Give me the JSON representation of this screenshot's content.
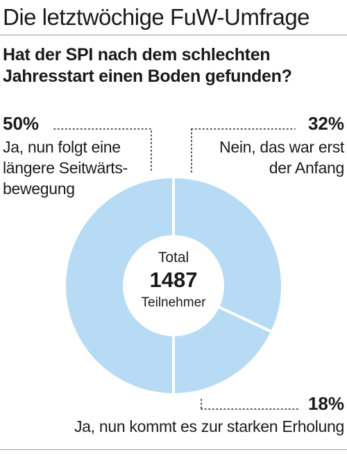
{
  "header": {
    "title": "Die letztwöchige FuW-Umfrage"
  },
  "question": "Hat der SPI nach dem schlechten Jahresstart einen Boden gefunden?",
  "center": {
    "total_label": "Total",
    "count": "1487",
    "unit": "Teilnehmer"
  },
  "colors": {
    "slice": "#b7dbf4",
    "separator": "#ffffff",
    "leader": "#1a1a1a",
    "rule": "#9a9a9a"
  },
  "chart_data": {
    "type": "pie",
    "title": "Hat der SPI nach dem schlechten Jahresstart einen Boden gefunden?",
    "total": 1487,
    "slices": [
      {
        "pct_label": "32%",
        "value": 32,
        "lines": [
          "Nein, das war erst",
          "der Anfang"
        ]
      },
      {
        "pct_label": "18%",
        "value": 18,
        "lines": [
          "Ja, nun kommt es zur starken Erholung"
        ]
      },
      {
        "pct_label": "50%",
        "value": 50,
        "lines": [
          "Ja, nun folgt eine",
          "längere Seitwärts-",
          "bewegung"
        ]
      }
    ]
  }
}
